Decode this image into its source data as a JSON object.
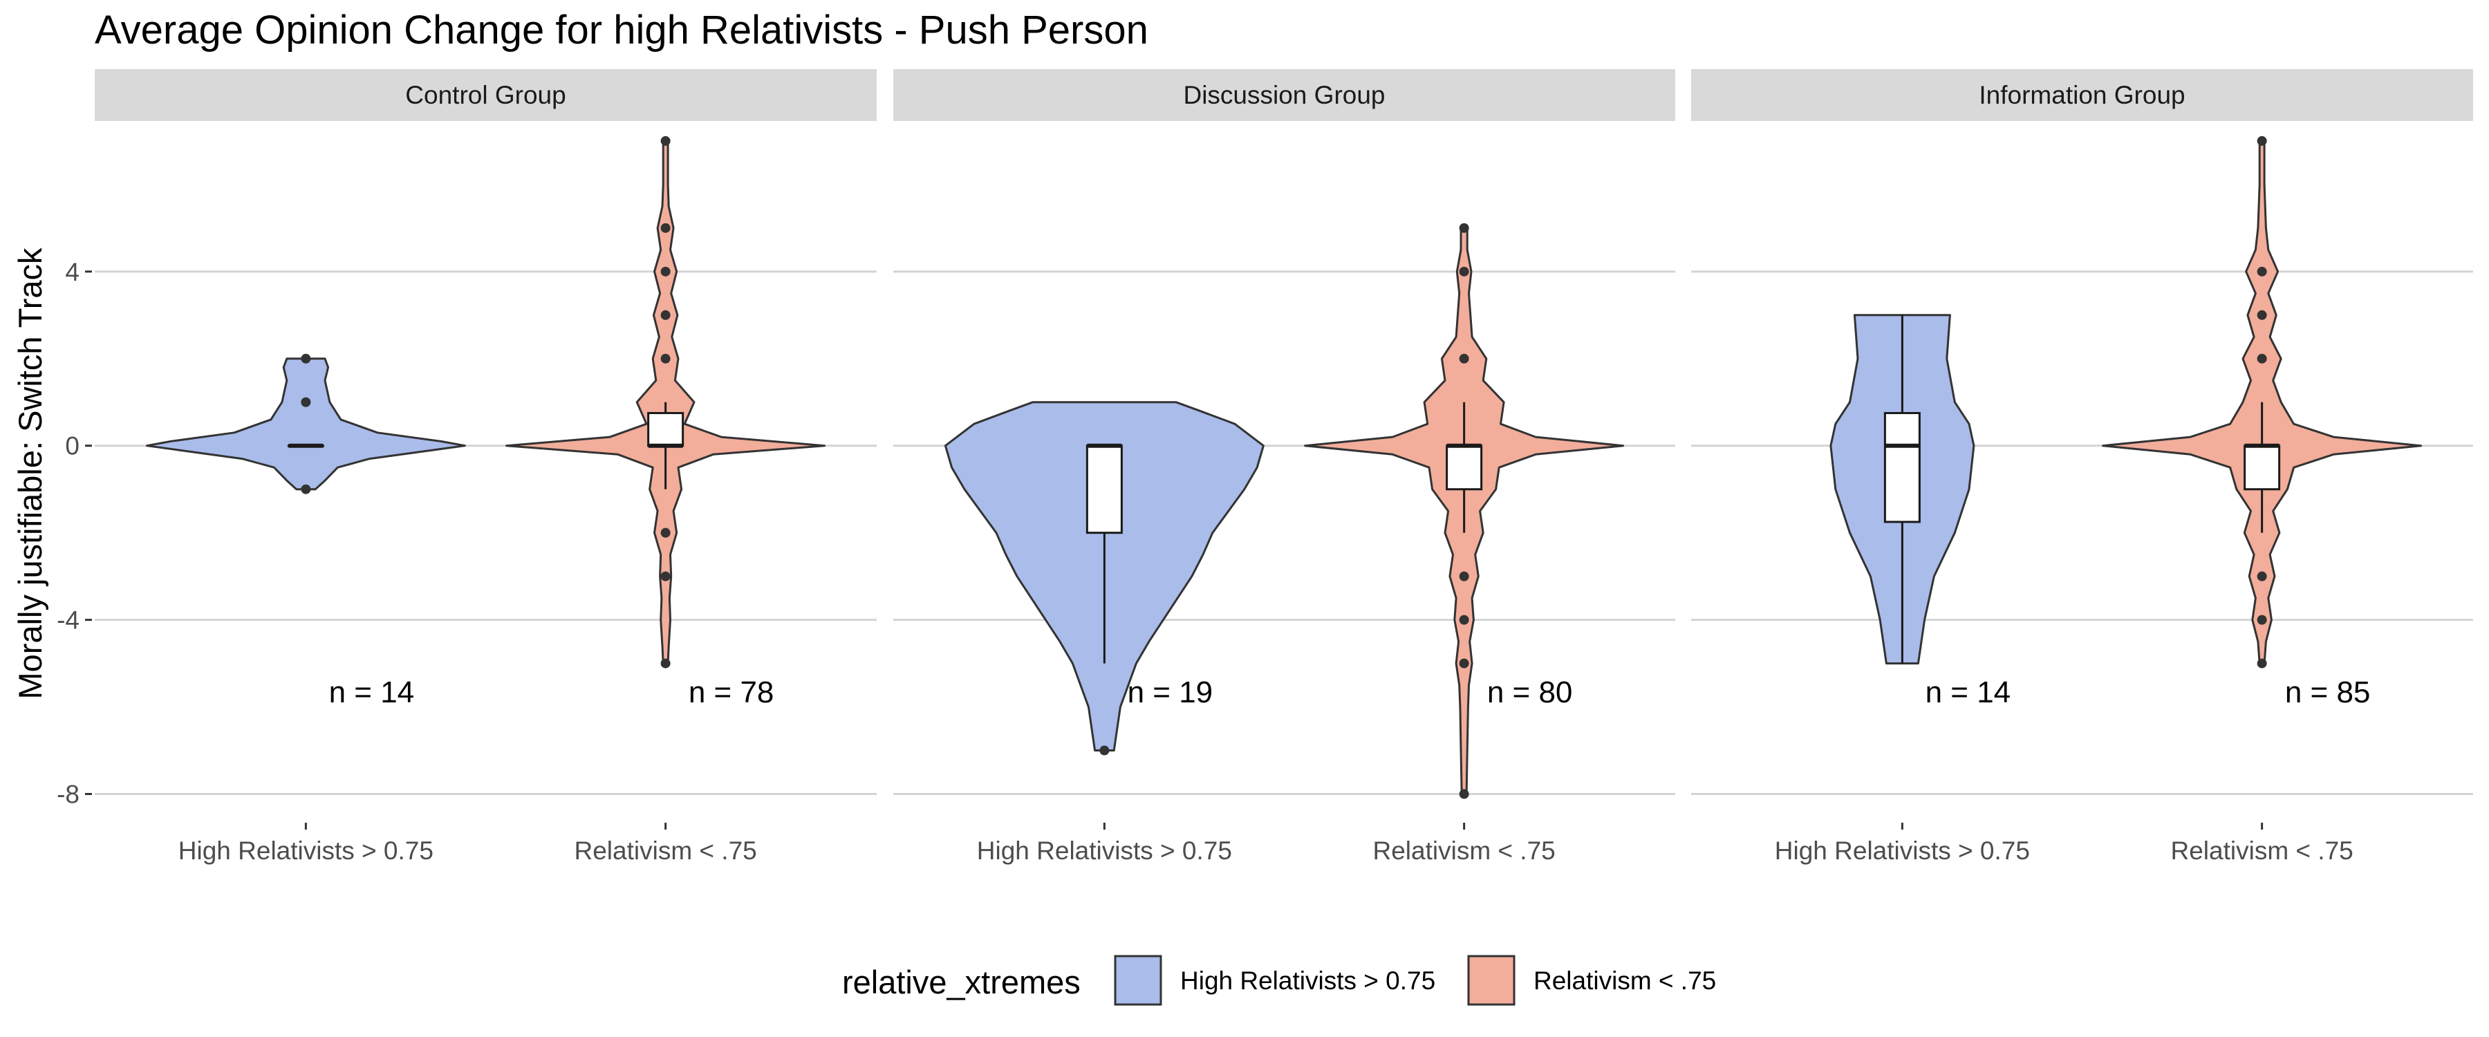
{
  "chart_data": {
    "type": "violin",
    "title": "Average Opinion Change for high Relativists - Push Person",
    "ylabel": "Morally justifiable: Switch Track",
    "xlabel": "",
    "ylim": [
      -8.5,
      7.3
    ],
    "y_ticks": [
      4,
      0,
      -4,
      -8
    ],
    "y_tick_labels": [
      "4",
      "0",
      "-4",
      "-8"
    ],
    "grid": true,
    "legend": {
      "title": "relative_xtremes",
      "position": "bottom",
      "items": [
        {
          "label": "High Relativists > 0.75",
          "color": "#a9bcea"
        },
        {
          "label": "Relativism < .75",
          "color": "#f2ad9b"
        }
      ]
    },
    "categories": [
      "High Relativists > 0.75",
      "Relativism < .75"
    ],
    "panels": [
      {
        "strip": "Control Group",
        "groups": [
          {
            "category": "High Relativists > 0.75",
            "n_label": "n = 14",
            "box": {
              "q1": 0,
              "median": 0,
              "q3": 0,
              "whisker_low": 0,
              "whisker_high": 0
            },
            "outliers": [
              2,
              1,
              -1
            ],
            "violin": [
              [
                -1.0,
                0.06
              ],
              [
                -0.8,
                0.12
              ],
              [
                -0.5,
                0.2
              ],
              [
                -0.3,
                0.4
              ],
              [
                -0.1,
                0.8
              ],
              [
                0.0,
                1.0
              ],
              [
                0.1,
                0.85
              ],
              [
                0.3,
                0.45
              ],
              [
                0.6,
                0.22
              ],
              [
                1.0,
                0.15
              ],
              [
                1.5,
                0.12
              ],
              [
                1.8,
                0.14
              ],
              [
                2.0,
                0.12
              ]
            ]
          },
          {
            "category": "Relativism < .75",
            "n_label": "n = 78",
            "box": {
              "q1": 0,
              "median": 0,
              "q3": 0.75,
              "whisker_low": -1,
              "whisker_high": 1
            },
            "outliers": [
              7,
              5,
              4,
              3,
              2,
              -2,
              -3,
              -5
            ],
            "violin": [
              [
                -5.0,
                0.015
              ],
              [
                -4.6,
                0.02
              ],
              [
                -4.0,
                0.03
              ],
              [
                -3.5,
                0.025
              ],
              [
                -3.0,
                0.035
              ],
              [
                -2.5,
                0.03
              ],
              [
                -2.0,
                0.07
              ],
              [
                -1.5,
                0.05
              ],
              [
                -1.0,
                0.1
              ],
              [
                -0.5,
                0.08
              ],
              [
                -0.2,
                0.3
              ],
              [
                0.0,
                1.0
              ],
              [
                0.2,
                0.35
              ],
              [
                0.5,
                0.12
              ],
              [
                1.0,
                0.18
              ],
              [
                1.5,
                0.06
              ],
              [
                2.0,
                0.08
              ],
              [
                2.5,
                0.04
              ],
              [
                3.0,
                0.075
              ],
              [
                3.5,
                0.035
              ],
              [
                4.0,
                0.07
              ],
              [
                4.5,
                0.03
              ],
              [
                5.0,
                0.05
              ],
              [
                5.5,
                0.02
              ],
              [
                6.0,
                0.015
              ],
              [
                7.0,
                0.015
              ]
            ]
          }
        ]
      },
      {
        "strip": "Discussion Group",
        "groups": [
          {
            "category": "High Relativists > 0.75",
            "n_label": "n = 19",
            "box": {
              "q1": -2,
              "median": 0,
              "q3": 0,
              "whisker_low": -5,
              "whisker_high": 0
            },
            "outliers": [
              -7
            ],
            "violin": [
              [
                -7.0,
                0.06
              ],
              [
                -6.5,
                0.08
              ],
              [
                -6.0,
                0.1
              ],
              [
                -5.5,
                0.15
              ],
              [
                -5.0,
                0.2
              ],
              [
                -4.5,
                0.28
              ],
              [
                -4.0,
                0.37
              ],
              [
                -3.5,
                0.46
              ],
              [
                -3.0,
                0.55
              ],
              [
                -2.5,
                0.62
              ],
              [
                -2.0,
                0.68
              ],
              [
                -1.5,
                0.78
              ],
              [
                -1.0,
                0.88
              ],
              [
                -0.5,
                0.96
              ],
              [
                0.0,
                1.0
              ],
              [
                0.5,
                0.82
              ],
              [
                0.8,
                0.6
              ],
              [
                1.0,
                0.45
              ]
            ]
          },
          {
            "category": "Relativism < .75",
            "n_label": "n = 80",
            "box": {
              "q1": -1,
              "median": 0,
              "q3": 0,
              "whisker_low": -2,
              "whisker_high": 1
            },
            "outliers": [
              5,
              4,
              2,
              -3,
              -4,
              -5,
              -8
            ],
            "violin": [
              [
                -8.0,
                0.015
              ],
              [
                -7.0,
                0.02
              ],
              [
                -6.0,
                0.025
              ],
              [
                -5.5,
                0.03
              ],
              [
                -5.0,
                0.05
              ],
              [
                -4.5,
                0.035
              ],
              [
                -4.0,
                0.06
              ],
              [
                -3.5,
                0.05
              ],
              [
                -3.0,
                0.09
              ],
              [
                -2.5,
                0.07
              ],
              [
                -2.0,
                0.12
              ],
              [
                -1.5,
                0.1
              ],
              [
                -1.0,
                0.2
              ],
              [
                -0.5,
                0.22
              ],
              [
                -0.2,
                0.45
              ],
              [
                0.0,
                1.0
              ],
              [
                0.2,
                0.45
              ],
              [
                0.5,
                0.23
              ],
              [
                1.0,
                0.25
              ],
              [
                1.5,
                0.12
              ],
              [
                2.0,
                0.14
              ],
              [
                2.5,
                0.05
              ],
              [
                3.0,
                0.04
              ],
              [
                3.5,
                0.03
              ],
              [
                4.0,
                0.045
              ],
              [
                4.5,
                0.02
              ],
              [
                5.0,
                0.02
              ]
            ]
          }
        ]
      },
      {
        "strip": "Information Group",
        "groups": [
          {
            "category": "High Relativists > 0.75",
            "n_label": "n = 14",
            "box": {
              "q1": -1.75,
              "median": 0,
              "q3": 0.75,
              "whisker_low": -5,
              "whisker_high": 3
            },
            "outliers": [],
            "violin": [
              [
                -5.0,
                0.1
              ],
              [
                -4.0,
                0.14
              ],
              [
                -3.0,
                0.2
              ],
              [
                -2.0,
                0.33
              ],
              [
                -1.0,
                0.42
              ],
              [
                0.0,
                0.45
              ],
              [
                0.5,
                0.42
              ],
              [
                1.0,
                0.33
              ],
              [
                2.0,
                0.28
              ],
              [
                3.0,
                0.3
              ]
            ]
          },
          {
            "category": "Relativism < .75",
            "n_label": "n = 85",
            "box": {
              "q1": -1,
              "median": 0,
              "q3": 0,
              "whisker_low": -2,
              "whisker_high": 1
            },
            "outliers": [
              7,
              4,
              3,
              2,
              -3,
              -4,
              -5
            ],
            "violin": [
              [
                -5.0,
                0.015
              ],
              [
                -4.5,
                0.025
              ],
              [
                -4.0,
                0.06
              ],
              [
                -3.5,
                0.04
              ],
              [
                -3.0,
                0.08
              ],
              [
                -2.5,
                0.05
              ],
              [
                -2.0,
                0.11
              ],
              [
                -1.5,
                0.07
              ],
              [
                -1.0,
                0.16
              ],
              [
                -0.5,
                0.2
              ],
              [
                -0.2,
                0.45
              ],
              [
                0.0,
                1.0
              ],
              [
                0.2,
                0.45
              ],
              [
                0.5,
                0.2
              ],
              [
                1.0,
                0.12
              ],
              [
                1.5,
                0.07
              ],
              [
                2.0,
                0.12
              ],
              [
                2.5,
                0.05
              ],
              [
                3.0,
                0.09
              ],
              [
                3.5,
                0.04
              ],
              [
                4.0,
                0.1
              ],
              [
                4.5,
                0.04
              ],
              [
                5.0,
                0.025
              ],
              [
                6.0,
                0.015
              ],
              [
                7.0,
                0.015
              ]
            ]
          }
        ]
      }
    ]
  }
}
